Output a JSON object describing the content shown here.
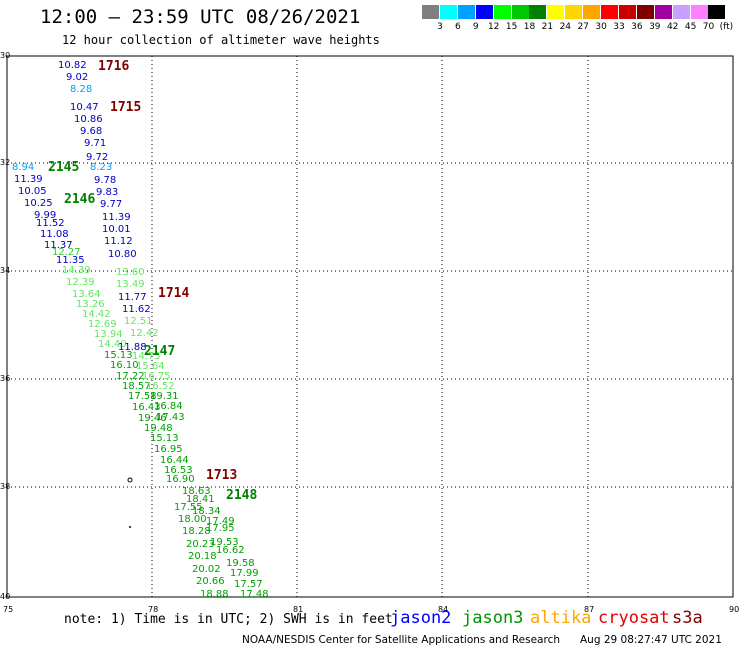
{
  "header": {
    "title": "12:00 – 23:59 UTC 08/26/2021",
    "subtitle": "12 hour collection of altimeter wave heights"
  },
  "colorbar": {
    "labels": [
      "3",
      "6",
      "9",
      "12",
      "15",
      "18",
      "21",
      "24",
      "27",
      "30",
      "33",
      "36",
      "39",
      "42",
      "45",
      "70",
      "(ft)"
    ],
    "colors": [
      "#808080",
      "#00ffff",
      "#00a0ff",
      "#0000ff",
      "#00ff00",
      "#00c800",
      "#008000",
      "#ffff00",
      "#ffd700",
      "#ffa500",
      "#ff0000",
      "#c80000",
      "#800000",
      "#a000a0",
      "#c8a0ff",
      "#ff80ff",
      "#000000"
    ]
  },
  "axes": {
    "lat_labels": [
      "30",
      "32",
      "34",
      "36",
      "38",
      "40"
    ],
    "lon_labels": [
      "75",
      "78",
      "81",
      "84",
      "87",
      "90"
    ]
  },
  "map": {
    "lat_range": [
      30,
      40
    ],
    "lon_range": [
      75,
      90
    ]
  },
  "passes": [
    {
      "label": "1716",
      "color": "#800000"
    },
    {
      "label": "1715",
      "color": "#800000"
    },
    {
      "label": "2145",
      "color": "#008000"
    },
    {
      "label": "2146",
      "color": "#008000"
    },
    {
      "label": "1714",
      "color": "#800000"
    },
    {
      "label": "2147",
      "color": "#008000"
    },
    {
      "label": "1713",
      "color": "#800000"
    },
    {
      "label": "2148",
      "color": "#008000"
    }
  ],
  "observations": [
    {
      "v": "10.82",
      "c": "#0000c8"
    },
    {
      "v": "9.02",
      "c": "#0000c8"
    },
    {
      "v": "8.28",
      "c": "#00a0ff"
    },
    {
      "v": "10.47",
      "c": "#0000c8"
    },
    {
      "v": "10.86",
      "c": "#0000c8"
    },
    {
      "v": "9.68",
      "c": "#0000c8"
    },
    {
      "v": "9.71",
      "c": "#0000c8"
    },
    {
      "v": "9.72",
      "c": "#0000c8"
    },
    {
      "v": "8.23",
      "c": "#00a0ff"
    },
    {
      "v": "9.78",
      "c": "#0000c8"
    },
    {
      "v": "9.83",
      "c": "#0000c8"
    },
    {
      "v": "9.77",
      "c": "#0000c8"
    },
    {
      "v": "11.39",
      "c": "#0000c8"
    },
    {
      "v": "10.01",
      "c": "#0000c8"
    },
    {
      "v": "11.12",
      "c": "#0000c8"
    },
    {
      "v": "10.80",
      "c": "#0000c8"
    },
    {
      "v": "8.94",
      "c": "#00a0ff"
    },
    {
      "v": "11.39",
      "c": "#0000c8"
    },
    {
      "v": "10.05",
      "c": "#0000c8"
    },
    {
      "v": "10.25",
      "c": "#0000c8"
    },
    {
      "v": "9.99",
      "c": "#0000c8"
    },
    {
      "v": "11.52",
      "c": "#0000c8"
    },
    {
      "v": "11.08",
      "c": "#0000c8"
    },
    {
      "v": "11.37",
      "c": "#0000c8"
    },
    {
      "v": "12.27",
      "c": "#32c832"
    },
    {
      "v": "11.35",
      "c": "#0000c8"
    },
    {
      "v": "14.39",
      "c": "#64e664"
    },
    {
      "v": "12.39",
      "c": "#64e664"
    },
    {
      "v": "13.64",
      "c": "#64e664"
    },
    {
      "v": "13.26",
      "c": "#64e664"
    },
    {
      "v": "14.42",
      "c": "#64e664"
    },
    {
      "v": "12.69",
      "c": "#64e664"
    },
    {
      "v": "13.94",
      "c": "#64e664"
    },
    {
      "v": "14.40",
      "c": "#64e664"
    },
    {
      "v": "15.13",
      "c": "#00a000"
    },
    {
      "v": "16.10",
      "c": "#00a000"
    },
    {
      "v": "17.22",
      "c": "#00a000"
    },
    {
      "v": "18.57",
      "c": "#00a000"
    },
    {
      "v": "17.58",
      "c": "#00a000"
    },
    {
      "v": "16.43",
      "c": "#00a000"
    },
    {
      "v": "19.46",
      "c": "#00a000"
    },
    {
      "v": "19.48",
      "c": "#00a000"
    },
    {
      "v": "15.13",
      "c": "#00a000"
    },
    {
      "v": "16.95",
      "c": "#00a000"
    },
    {
      "v": "16.44",
      "c": "#00a000"
    },
    {
      "v": "16.53",
      "c": "#00a000"
    },
    {
      "v": "16.90",
      "c": "#00a000"
    },
    {
      "v": "13.60",
      "c": "#64e664"
    },
    {
      "v": "13.49",
      "c": "#64e664"
    },
    {
      "v": "11.77",
      "c": "#0000c8"
    },
    {
      "v": "11.62",
      "c": "#0000c8"
    },
    {
      "v": "12.51",
      "c": "#64e664"
    },
    {
      "v": "12.42",
      "c": "#64e664"
    },
    {
      "v": "11.88",
      "c": "#0000c8"
    },
    {
      "v": "14.75",
      "c": "#64e664"
    },
    {
      "v": "15.64",
      "c": "#64e664"
    },
    {
      "v": "16.75",
      "c": "#64e664"
    },
    {
      "v": "16.52",
      "c": "#64e664"
    },
    {
      "v": "19.31",
      "c": "#00a000"
    },
    {
      "v": "16.84",
      "c": "#00a000"
    },
    {
      "v": "17.43",
      "c": "#00a000"
    },
    {
      "v": "18.63",
      "c": "#00a000"
    },
    {
      "v": "18.41",
      "c": "#00a000"
    },
    {
      "v": "17.55",
      "c": "#00a000"
    },
    {
      "v": "18.34",
      "c": "#00a000"
    },
    {
      "v": "18.00",
      "c": "#00a000"
    },
    {
      "v": "17.49",
      "c": "#00a000"
    },
    {
      "v": "18.28",
      "c": "#00a000"
    },
    {
      "v": "17.95",
      "c": "#00a000"
    },
    {
      "v": "20.23",
      "c": "#00a000"
    },
    {
      "v": "19.53",
      "c": "#00a000"
    },
    {
      "v": "20.18",
      "c": "#00a000"
    },
    {
      "v": "16.62",
      "c": "#00a000"
    },
    {
      "v": "19.58",
      "c": "#00a000"
    },
    {
      "v": "20.02",
      "c": "#00a000"
    },
    {
      "v": "17.99",
      "c": "#00a000"
    },
    {
      "v": "20.66",
      "c": "#00a000"
    },
    {
      "v": "17.57",
      "c": "#00a000"
    },
    {
      "v": "18.88",
      "c": "#00a000"
    },
    {
      "v": "17.48",
      "c": "#00a000"
    }
  ],
  "note": "note: 1) Time is in UTC; 2) SWH is in feet",
  "missions": [
    {
      "name": "jason2",
      "color": "#0000ff"
    },
    {
      "name": "jason3",
      "color": "#009600"
    },
    {
      "name": "altika",
      "color": "#ffa500"
    },
    {
      "name": "cryosat",
      "color": "#e60000"
    },
    {
      "name": "s3a",
      "color": "#800000"
    }
  ],
  "credit": "NOAA/NESDIS Center for Satellite Applications and Research",
  "credit_date": "Aug 29 08:27:47 UTC 2021"
}
